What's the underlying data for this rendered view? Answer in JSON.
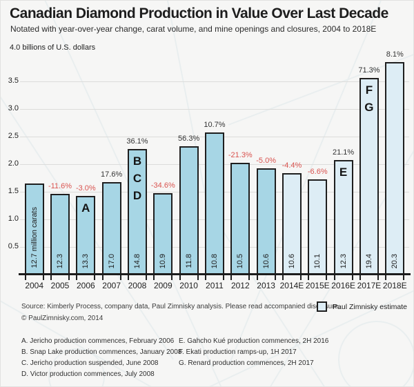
{
  "title": "Canadian Diamond Production in Value Over Last Decade",
  "subtitle": "Notated with year-over-year change, carat volume, and mine openings and closures, 2004 to 2018E",
  "axis": {
    "unit_label": "4.0 billions of U.S. dollars",
    "y_ticks": [
      "3.5",
      "3.0",
      "2.5",
      "2.0",
      "1.5",
      "1.0",
      "0.5"
    ],
    "y_max": 4.0
  },
  "colors": {
    "actual_bar": "#a7d6e5",
    "estimate_bar": "#ddedf5",
    "bar_border": "#1e1e1e",
    "negative_pct": "#d9534f",
    "positive_pct": "#333333"
  },
  "chart_data": {
    "type": "bar",
    "title": "Canadian Diamond Production in Value Over Last Decade",
    "xlabel": "",
    "ylabel": "billions of U.S. dollars",
    "ylim": [
      0,
      4.0
    ],
    "grid": true,
    "categories": [
      "2004",
      "2005",
      "2006",
      "2007",
      "2008",
      "2009",
      "2010",
      "2011",
      "2012",
      "2013",
      "2014E",
      "2015E",
      "2016E",
      "2017E",
      "2018E"
    ],
    "values": [
      1.65,
      1.46,
      1.42,
      1.67,
      2.27,
      1.48,
      2.32,
      2.57,
      2.02,
      1.92,
      1.84,
      1.72,
      2.08,
      3.56,
      3.85
    ],
    "yoy_labels": [
      "",
      "-11.6%",
      "-3.0%",
      "17.6%",
      "36.1%",
      "-34.6%",
      "56.3%",
      "10.7%",
      "-21.3%",
      "-5.0%",
      "-4.4%",
      "-6.6%",
      "21.1%",
      "71.3%",
      "8.1%"
    ],
    "carat_labels": [
      "12.7 million carats",
      "12.3",
      "13.3",
      "17.0",
      "14.8",
      "10.9",
      "11.8",
      "10.8",
      "10.5",
      "10.6",
      "10.6",
      "10.1",
      "12.3",
      "19.4",
      "20.3"
    ],
    "mine_letters": [
      [],
      [],
      [
        "A"
      ],
      [],
      [
        "B",
        "C",
        "D"
      ],
      [],
      [],
      [],
      [],
      [],
      [],
      [],
      [
        "E"
      ],
      [
        "F",
        "G"
      ],
      []
    ],
    "estimate": [
      false,
      false,
      false,
      false,
      false,
      false,
      false,
      false,
      false,
      false,
      true,
      true,
      true,
      true,
      true
    ]
  },
  "legend": {
    "label": "Paul Zimnisky estimate"
  },
  "footer": {
    "source": "Source: Kimberly Process, company data, Paul Zimnisky analysis.  Please read accompanied disclosure.",
    "copyright": "© PaulZimnisky.com, 2014"
  },
  "footnotes": {
    "left": [
      "A. Jericho production commences, February 2006",
      "B. Snap Lake production commences, January 2008",
      "C. Jericho production suspended, June 2008",
      "D. Victor production commences, July 2008"
    ],
    "right": [
      "E. Gahcho Kué production commences, 2H 2016",
      "F. Ekati production ramps-up, 1H 2017",
      "G. Renard production commences, 2H 2017"
    ]
  }
}
